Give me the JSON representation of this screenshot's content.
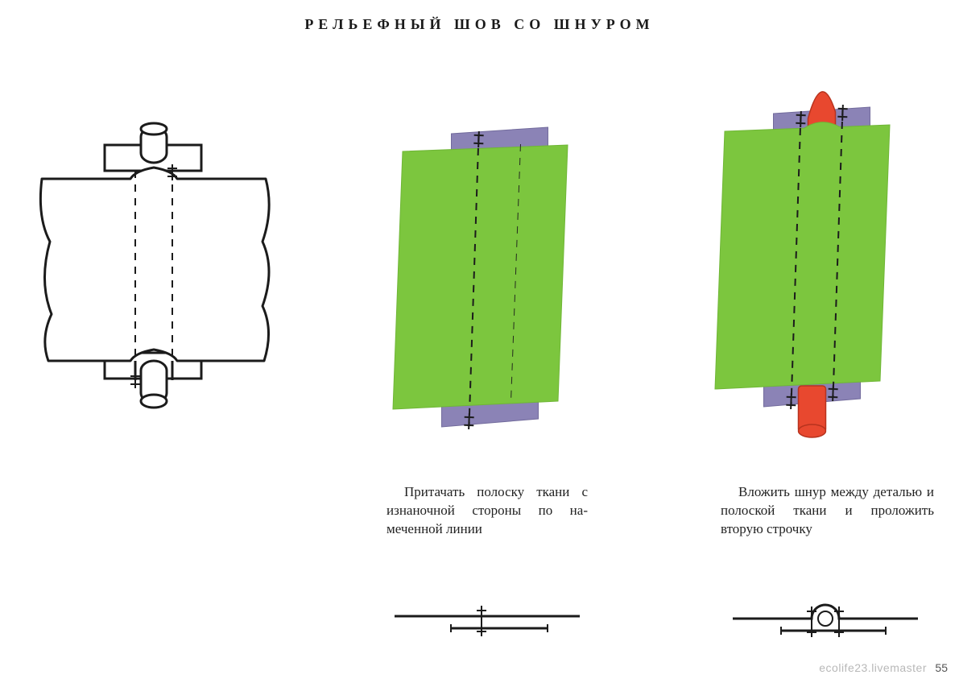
{
  "title": "РЕЛЬЕФНЫЙ ШОВ СО ШНУРОМ",
  "page_number": "55",
  "watermark": "ecolife23.livemaster",
  "colors": {
    "bg": "#ffffff",
    "stroke": "#1b1b1b",
    "fabric": "#7cc63e",
    "fabric_stroke": "#6fb636",
    "strip": "#8b83b6",
    "strip_stroke": "#726b9c",
    "cord": "#e8482f",
    "cord_dark": "#b7331e"
  },
  "style": {
    "stroke_w_main": 3,
    "stroke_w_thin": 2,
    "dash": "9 8",
    "title_fontsize": 18,
    "title_letterspacing": 6,
    "caption_fontsize": 17
  },
  "panel2": {
    "caption": "Притачать полоску ткани с изнаночной стороны по на­меченной линии"
  },
  "panel3": {
    "caption": "Вложить шнур между де­талью и полоской ткани и проложить вторую строчку"
  }
}
